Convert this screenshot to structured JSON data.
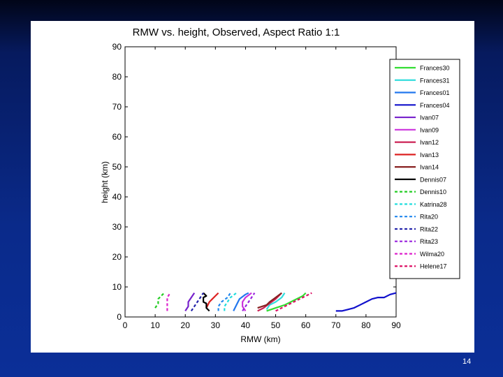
{
  "slide": {
    "page_number": "14"
  },
  "chart_data": {
    "type": "line",
    "title": "RMW vs. height, Observed, Aspect Ratio 1:1",
    "xlabel": "RMW (km)",
    "ylabel": "height (km)",
    "xlim": [
      0,
      90
    ],
    "ylim": [
      0,
      90
    ],
    "xticks": [
      "0",
      "10",
      "20",
      "30",
      "40",
      "50",
      "60",
      "70",
      "80",
      "90"
    ],
    "yticks": [
      "0",
      "10",
      "20",
      "30",
      "40",
      "50",
      "60",
      "70",
      "80",
      "90"
    ],
    "grid": false,
    "legend_position": "right",
    "series": [
      {
        "name": "Frances30",
        "color": "#33dd33",
        "dash": "solid",
        "points": [
          [
            47,
            2
          ],
          [
            50,
            3
          ],
          [
            53,
            4
          ],
          [
            56,
            5.5
          ],
          [
            59,
            7
          ],
          [
            60,
            8
          ]
        ]
      },
      {
        "name": "Frances31",
        "color": "#33dddd",
        "dash": "solid",
        "points": [
          [
            47,
            2.5
          ],
          [
            48,
            4
          ],
          [
            50,
            5
          ],
          [
            52,
            6.5
          ],
          [
            53,
            8
          ]
        ]
      },
      {
        "name": "Frances01",
        "color": "#2277ee",
        "dash": "solid",
        "points": [
          [
            36,
            2
          ],
          [
            37,
            4
          ],
          [
            38,
            6
          ],
          [
            40,
            7.5
          ],
          [
            41,
            8
          ]
        ]
      },
      {
        "name": "Frances04",
        "color": "#1111cc",
        "dash": "solid",
        "points": [
          [
            70,
            2
          ],
          [
            72,
            2
          ],
          [
            74,
            2.5
          ],
          [
            76,
            3
          ],
          [
            78,
            4
          ],
          [
            80,
            5
          ],
          [
            82,
            6
          ],
          [
            84,
            6.5
          ],
          [
            86,
            6.5
          ],
          [
            88,
            7.5
          ],
          [
            90,
            8
          ]
        ]
      },
      {
        "name": "Ivan07",
        "color": "#7722cc",
        "dash": "solid",
        "points": [
          [
            20,
            2
          ],
          [
            21,
            3.5
          ],
          [
            21,
            5
          ],
          [
            22,
            6.5
          ],
          [
            23,
            8
          ]
        ]
      },
      {
        "name": "Ivan09",
        "color": "#cc33dd",
        "dash": "solid",
        "points": [
          [
            40,
            2
          ],
          [
            39,
            3.5
          ],
          [
            39,
            5
          ],
          [
            40,
            6.5
          ],
          [
            42,
            8
          ]
        ]
      },
      {
        "name": "Ivan12",
        "color": "#cc2255",
        "dash": "solid",
        "points": [
          [
            44,
            2
          ],
          [
            46,
            3
          ],
          [
            48,
            4.5
          ],
          [
            50,
            6
          ],
          [
            52,
            8
          ]
        ]
      },
      {
        "name": "Ivan13",
        "color": "#dd2222",
        "dash": "solid",
        "points": [
          [
            27,
            3
          ],
          [
            28,
            5
          ],
          [
            29,
            6
          ],
          [
            30,
            7
          ],
          [
            31,
            8
          ]
        ]
      },
      {
        "name": "Ivan14",
        "color": "#882222",
        "dash": "solid",
        "points": [
          [
            44,
            3
          ],
          [
            47,
            4
          ],
          [
            48,
            5
          ],
          [
            50,
            6.5
          ],
          [
            52,
            8
          ]
        ]
      },
      {
        "name": "Dennis07",
        "color": "#000000",
        "dash": "solid",
        "points": [
          [
            28,
            2
          ],
          [
            27,
            3
          ],
          [
            27,
            4.5
          ],
          [
            26,
            5
          ],
          [
            26,
            6.5
          ],
          [
            27,
            7
          ],
          [
            26,
            8
          ]
        ]
      },
      {
        "name": "Dennis10",
        "color": "#22cc22",
        "dash": "dashed",
        "points": [
          [
            10,
            3
          ],
          [
            11,
            4.5
          ],
          [
            11,
            6
          ],
          [
            12,
            7
          ],
          [
            13,
            8
          ]
        ]
      },
      {
        "name": "Katrina28",
        "color": "#22dddd",
        "dash": "dashed",
        "points": [
          [
            33,
            2
          ],
          [
            33,
            3.5
          ],
          [
            34,
            5
          ],
          [
            35,
            6.5
          ],
          [
            37,
            8
          ]
        ]
      },
      {
        "name": "Rita20",
        "color": "#2288ee",
        "dash": "dashed",
        "points": [
          [
            31,
            2
          ],
          [
            31,
            3.5
          ],
          [
            32,
            5
          ],
          [
            34,
            6.5
          ],
          [
            35,
            8
          ]
        ]
      },
      {
        "name": "Rita22",
        "color": "#2222aa",
        "dash": "dashed",
        "points": [
          [
            22,
            2
          ],
          [
            23,
            3.5
          ],
          [
            24,
            5
          ],
          [
            25,
            6.5
          ],
          [
            26,
            8
          ]
        ]
      },
      {
        "name": "Rita23",
        "color": "#9922dd",
        "dash": "dashed",
        "points": [
          [
            39,
            2
          ],
          [
            40,
            3.5
          ],
          [
            41,
            5
          ],
          [
            42,
            6.5
          ],
          [
            43,
            8
          ]
        ]
      },
      {
        "name": "Wilma20",
        "color": "#dd22cc",
        "dash": "dashed",
        "points": [
          [
            14,
            2
          ],
          [
            14,
            3.5
          ],
          [
            14,
            5
          ],
          [
            14,
            6.5
          ],
          [
            15,
            8
          ]
        ]
      },
      {
        "name": "Helene17",
        "color": "#dd1166",
        "dash": "dashed",
        "points": [
          [
            50,
            2
          ],
          [
            53,
            3.5
          ],
          [
            56,
            5
          ],
          [
            59,
            6.5
          ],
          [
            62,
            8
          ]
        ]
      }
    ]
  }
}
